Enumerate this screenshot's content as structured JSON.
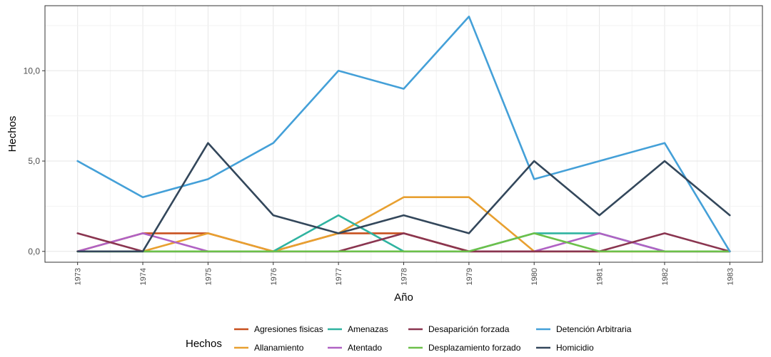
{
  "chart_data": {
    "type": "line",
    "xlabel": "Año",
    "ylabel": "Hechos",
    "x": [
      1973,
      1974,
      1975,
      1976,
      1977,
      1978,
      1979,
      1980,
      1981,
      1982,
      1983
    ],
    "x_tick_labels": [
      "1973",
      "1974",
      "1975",
      "1976",
      "1977",
      "1978",
      "1979",
      "1980",
      "1981",
      "1982",
      "1983"
    ],
    "y_ticks": [
      0,
      5,
      10
    ],
    "y_tick_labels": [
      "0,0",
      "5,0",
      "10,0"
    ],
    "ylim": [
      -0.6,
      13.6
    ],
    "grid": true,
    "legend": {
      "title": "Hechos",
      "position": "bottom",
      "rows": 2
    },
    "series": [
      {
        "name": "Agresiones fisicas",
        "color": "#c8501e",
        "values": [
          0,
          1,
          1,
          0,
          1,
          1,
          0,
          0,
          0,
          0,
          0
        ]
      },
      {
        "name": "Allanamiento",
        "color": "#e8a030",
        "values": [
          0,
          0,
          1,
          0,
          1,
          3,
          3,
          0,
          0,
          0,
          0
        ]
      },
      {
        "name": "Amenazas",
        "color": "#2fb3a0",
        "values": [
          0,
          0,
          0,
          0,
          2,
          0,
          0,
          1,
          1,
          0,
          0
        ]
      },
      {
        "name": "Atentado",
        "color": "#b062c4",
        "values": [
          0,
          1,
          0,
          0,
          0,
          0,
          0,
          0,
          1,
          0,
          0
        ]
      },
      {
        "name": "Desaparición forzada",
        "color": "#8a3550",
        "values": [
          1,
          0,
          0,
          0,
          0,
          1,
          0,
          0,
          0,
          1,
          0
        ]
      },
      {
        "name": "Desplazamiento forzado",
        "color": "#6cc04a",
        "values": [
          0,
          0,
          0,
          0,
          0,
          0,
          0,
          1,
          0,
          0,
          0
        ]
      },
      {
        "name": "Detención Arbitraria",
        "color": "#44a0d8",
        "values": [
          5,
          3,
          4,
          6,
          10,
          9,
          13,
          4,
          5,
          6,
          0
        ]
      },
      {
        "name": "Homicidio",
        "color": "#33475b",
        "values": [
          0,
          0,
          6,
          2,
          1,
          2,
          1,
          5,
          2,
          5,
          2
        ]
      }
    ]
  }
}
